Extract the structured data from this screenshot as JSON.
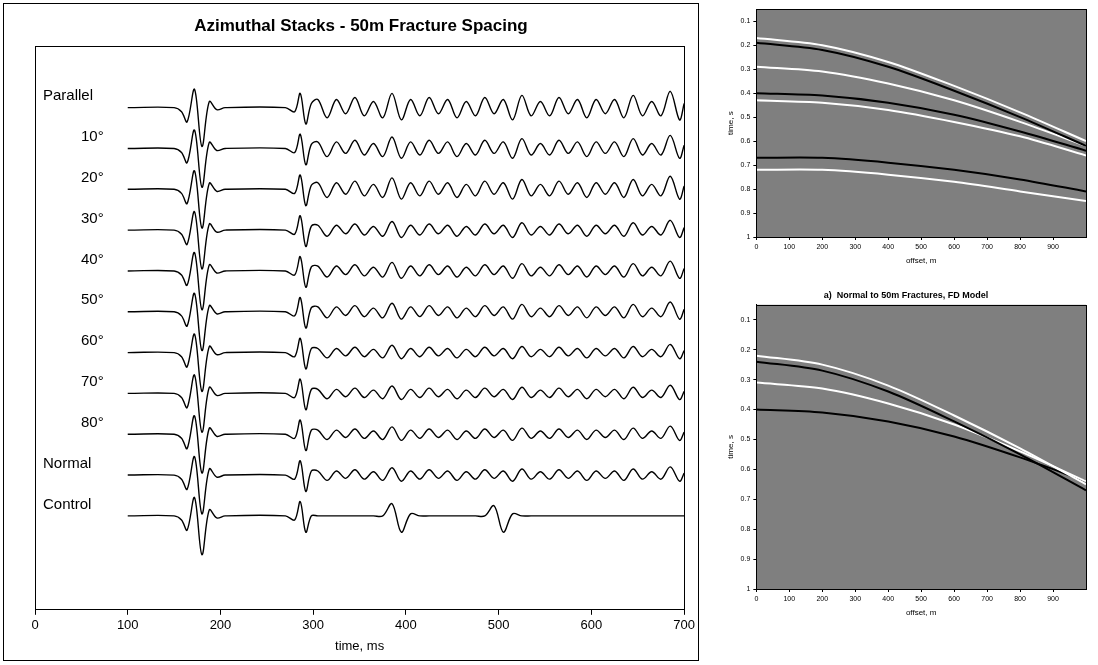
{
  "chart_data": [
    {
      "type": "line",
      "title": "Azimuthal Stacks - 50m Fracture Spacing",
      "x_label": "time, ms",
      "xlim": [
        0,
        700
      ],
      "xticks": [
        0,
        100,
        200,
        300,
        400,
        500,
        600,
        700
      ],
      "ylim": [
        -2.3,
        11.5
      ],
      "tick_labels": "x",
      "grid": false,
      "x": [
        100,
        150,
        158,
        164,
        172,
        180,
        188,
        196,
        205,
        270,
        280,
        286,
        292,
        298,
        305,
        315,
        325,
        335,
        345,
        355,
        365,
        375,
        385,
        395,
        405,
        415,
        425,
        435,
        445,
        455,
        465,
        475,
        485,
        495,
        505,
        515,
        525,
        535,
        545,
        555,
        565,
        575,
        585,
        595,
        605,
        615,
        625,
        635,
        645,
        655,
        665,
        675,
        685,
        695,
        700
      ],
      "series": [
        {
          "name": "Parallel",
          "color": "#000000",
          "values": [
            10,
            10,
            9.9,
            9.65,
            10.45,
            9.05,
            10.15,
            9.95,
            10,
            10,
            9.9,
            10.35,
            9.6,
            10.1,
            10.2,
            9.75,
            10.2,
            9.85,
            10.25,
            9.8,
            10.15,
            9.75,
            10.35,
            9.7,
            10.2,
            9.8,
            10.25,
            9.85,
            10.2,
            9.75,
            10.15,
            9.8,
            10.25,
            9.85,
            10.2,
            9.7,
            10.3,
            9.8,
            10.15,
            9.8,
            10.25,
            9.85,
            10.2,
            9.75,
            10.2,
            9.85,
            10.2,
            9.75,
            10.3,
            9.8,
            10.15,
            9.8,
            10.4,
            9.7,
            10.1
          ]
        },
        {
          "name": "10°",
          "color": "#000000",
          "values": [
            9,
            9,
            8.9,
            8.65,
            9.45,
            8.05,
            9.15,
            8.95,
            9,
            9,
            8.9,
            9.35,
            8.6,
            9.1,
            9.16,
            8.8,
            9.16,
            8.88,
            9.2,
            8.84,
            9.12,
            8.8,
            9.28,
            8.76,
            9.16,
            8.84,
            9.2,
            8.88,
            9.16,
            8.8,
            9.12,
            8.84,
            9.2,
            8.88,
            9.16,
            8.76,
            9.24,
            8.84,
            9.12,
            8.84,
            9.2,
            8.88,
            9.16,
            8.8,
            9.16,
            8.88,
            9.16,
            8.8,
            9.24,
            8.84,
            9.12,
            8.84,
            9.32,
            8.76,
            9.08
          ]
        },
        {
          "name": "20°",
          "color": "#000000",
          "values": [
            8,
            8,
            7.9,
            7.65,
            8.45,
            7.05,
            8.15,
            7.95,
            8,
            8,
            7.9,
            8.35,
            7.6,
            8.1,
            8.16,
            7.8,
            8.16,
            7.88,
            8.2,
            7.84,
            8.12,
            7.8,
            8.28,
            7.76,
            8.16,
            7.84,
            8.2,
            7.88,
            8.16,
            7.8,
            8.12,
            7.84,
            8.2,
            7.88,
            8.16,
            7.76,
            8.24,
            7.84,
            8.12,
            7.84,
            8.2,
            7.88,
            8.16,
            7.8,
            8.16,
            7.88,
            8.16,
            7.8,
            8.24,
            7.84,
            8.12,
            7.84,
            8.32,
            7.76,
            8.08
          ]
        },
        {
          "name": "30°",
          "color": "#000000",
          "values": [
            7,
            7,
            6.9,
            6.65,
            7.45,
            6.05,
            7.15,
            6.95,
            7,
            7,
            6.9,
            7.35,
            6.6,
            7.1,
            7.12,
            6.85,
            7.12,
            6.91,
            7.15,
            6.88,
            7.09,
            6.85,
            7.21,
            6.82,
            7.12,
            6.88,
            7.15,
            6.91,
            7.12,
            6.85,
            7.09,
            6.88,
            7.15,
            6.91,
            7.12,
            6.82,
            7.18,
            6.88,
            7.09,
            6.88,
            7.15,
            6.91,
            7.12,
            6.85,
            7.12,
            6.91,
            7.12,
            6.85,
            7.18,
            6.88,
            7.09,
            6.88,
            7.24,
            6.82,
            7.06
          ]
        },
        {
          "name": "40°",
          "color": "#000000",
          "values": [
            6,
            6,
            5.9,
            5.65,
            6.45,
            5.05,
            6.15,
            5.95,
            6,
            6,
            5.9,
            6.35,
            5.6,
            6.1,
            6.12,
            5.85,
            6.12,
            5.91,
            6.15,
            5.88,
            6.09,
            5.85,
            6.21,
            5.82,
            6.12,
            5.88,
            6.15,
            5.91,
            6.12,
            5.85,
            6.09,
            5.88,
            6.15,
            5.91,
            6.12,
            5.82,
            6.18,
            5.88,
            6.09,
            5.88,
            6.15,
            5.91,
            6.12,
            5.85,
            6.12,
            5.91,
            6.12,
            5.85,
            6.18,
            5.88,
            6.09,
            5.88,
            6.24,
            5.82,
            6.06
          ]
        },
        {
          "name": "50°",
          "color": "#000000",
          "values": [
            5,
            5,
            4.9,
            4.65,
            5.45,
            4.05,
            5.15,
            4.95,
            5,
            5,
            4.9,
            5.35,
            4.6,
            5.1,
            5.12,
            4.85,
            5.12,
            4.91,
            5.15,
            4.88,
            5.09,
            4.85,
            5.21,
            4.82,
            5.12,
            4.88,
            5.15,
            4.91,
            5.12,
            4.85,
            5.09,
            4.88,
            5.15,
            4.91,
            5.12,
            4.82,
            5.18,
            4.88,
            5.09,
            4.88,
            5.15,
            4.91,
            5.12,
            4.85,
            5.12,
            4.91,
            5.12,
            4.85,
            5.18,
            4.88,
            5.09,
            4.88,
            5.24,
            4.82,
            5.06
          ]
        },
        {
          "name": "60°",
          "color": "#000000",
          "values": [
            4,
            4,
            3.9,
            3.65,
            4.45,
            3.05,
            4.15,
            3.95,
            4,
            4,
            3.9,
            4.35,
            3.6,
            4.1,
            4.1,
            3.87,
            4.1,
            3.92,
            4.13,
            3.9,
            4.08,
            3.87,
            4.18,
            3.85,
            4.1,
            3.9,
            4.13,
            3.92,
            4.1,
            3.87,
            4.08,
            3.9,
            4.13,
            3.92,
            4.1,
            3.85,
            4.15,
            3.9,
            4.08,
            3.9,
            4.13,
            3.92,
            4.1,
            3.87,
            4.1,
            3.92,
            4.1,
            3.87,
            4.15,
            3.9,
            4.08,
            3.9,
            4.2,
            3.85,
            4.05
          ]
        },
        {
          "name": "70°",
          "color": "#000000",
          "values": [
            3,
            3,
            2.9,
            2.65,
            3.45,
            2.05,
            3.15,
            2.95,
            3,
            3,
            2.9,
            3.35,
            2.6,
            3.1,
            3.1,
            2.87,
            3.1,
            2.92,
            3.13,
            2.9,
            3.08,
            2.87,
            3.18,
            2.85,
            3.1,
            2.9,
            3.13,
            2.92,
            3.1,
            2.87,
            3.08,
            2.9,
            3.13,
            2.92,
            3.1,
            2.85,
            3.15,
            2.9,
            3.08,
            2.9,
            3.13,
            2.92,
            3.1,
            2.87,
            3.1,
            2.92,
            3.1,
            2.87,
            3.15,
            2.9,
            3.08,
            2.9,
            3.2,
            2.85,
            3.05
          ]
        },
        {
          "name": "80°",
          "color": "#000000",
          "values": [
            2,
            2,
            1.9,
            1.65,
            2.45,
            1.05,
            2.15,
            1.95,
            2,
            2,
            1.9,
            2.35,
            1.6,
            2.1,
            2.1,
            1.87,
            2.1,
            1.92,
            2.13,
            1.9,
            2.08,
            1.87,
            2.18,
            1.85,
            2.1,
            1.9,
            2.13,
            1.92,
            2.1,
            1.87,
            2.08,
            1.9,
            2.13,
            1.92,
            2.1,
            1.85,
            2.15,
            1.9,
            2.08,
            1.9,
            2.13,
            1.92,
            2.1,
            1.87,
            2.1,
            1.92,
            2.1,
            1.87,
            2.15,
            1.9,
            2.08,
            1.9,
            2.2,
            1.85,
            2.05
          ]
        },
        {
          "name": "Normal",
          "color": "#000000",
          "values": [
            1,
            1,
            0.9,
            0.65,
            1.45,
            0.05,
            1.15,
            0.95,
            1,
            1,
            0.9,
            1.35,
            0.6,
            1.1,
            1.1,
            0.87,
            1.1,
            0.92,
            1.13,
            0.9,
            1.08,
            0.87,
            1.18,
            0.85,
            1.1,
            0.9,
            1.13,
            0.92,
            1.1,
            0.87,
            1.08,
            0.9,
            1.13,
            0.92,
            1.1,
            0.85,
            1.15,
            0.9,
            1.08,
            0.9,
            1.13,
            0.92,
            1.1,
            0.87,
            1.1,
            0.92,
            1.1,
            0.87,
            1.15,
            0.9,
            1.08,
            0.9,
            1.2,
            0.85,
            1.05
          ]
        },
        {
          "name": "Control",
          "color": "#000000",
          "values": [
            0,
            0,
            -0.1,
            -0.35,
            0.45,
            -0.95,
            0.15,
            -0.05,
            0,
            0,
            -0.1,
            0.35,
            -0.4,
            0,
            0,
            0,
            0,
            0,
            0,
            0,
            0,
            0,
            0.3,
            -0.4,
            0.05,
            0,
            0,
            0,
            0,
            0,
            0,
            0,
            0,
            0.25,
            -0.4,
            0.05,
            0,
            0,
            0,
            0,
            0,
            0,
            0,
            0,
            0,
            0,
            0,
            0,
            0,
            0,
            0,
            0,
            0,
            0,
            0
          ]
        }
      ]
    },
    {
      "type": "line",
      "x_label": "offset, m",
      "y_label": "time, s",
      "xlim": [
        0,
        1000
      ],
      "xticks": [
        0,
        100,
        200,
        300,
        400,
        500,
        600,
        700,
        800,
        900
      ],
      "ylim": [
        1,
        0.05
      ],
      "yticks": [
        0.1,
        0.2,
        0.3,
        0.4,
        0.5,
        0.6,
        0.7,
        0.8,
        0.9,
        1
      ],
      "grid": false,
      "x": [
        0,
        200,
        400,
        600,
        800,
        1000
      ],
      "series": [
        {
          "color": "#ffffff",
          "values": [
            0.17,
            0.2,
            0.27,
            0.37,
            0.48,
            0.6
          ]
        },
        {
          "color": "#000000",
          "values": [
            0.19,
            0.22,
            0.29,
            0.39,
            0.5,
            0.62
          ]
        },
        {
          "color": "#ffffff",
          "values": [
            0.29,
            0.31,
            0.36,
            0.43,
            0.52,
            0.62
          ]
        },
        {
          "color": "#000000",
          "values": [
            0.4,
            0.41,
            0.44,
            0.49,
            0.56,
            0.64
          ]
        },
        {
          "color": "#ffffff",
          "values": [
            0.43,
            0.44,
            0.47,
            0.52,
            0.58,
            0.66
          ]
        },
        {
          "color": "#000000",
          "values": [
            0.67,
            0.67,
            0.69,
            0.72,
            0.76,
            0.81
          ]
        },
        {
          "color": "#ffffff",
          "values": [
            0.72,
            0.72,
            0.74,
            0.77,
            0.81,
            0.85
          ]
        }
      ]
    },
    {
      "type": "line",
      "title": "a)  Normal to 50m Fractures, FD Model",
      "x_label": "offset, m",
      "y_label": "time, s",
      "xlim": [
        0,
        1000
      ],
      "xticks": [
        0,
        100,
        200,
        300,
        400,
        500,
        600,
        700,
        800,
        900
      ],
      "ylim": [
        1,
        0.05
      ],
      "yticks": [
        0.1,
        0.2,
        0.3,
        0.4,
        0.5,
        0.6,
        0.7,
        0.8,
        0.9,
        1
      ],
      "grid": false,
      "x": [
        0,
        200,
        400,
        600,
        800,
        1000
      ],
      "series": [
        {
          "color": "#ffffff",
          "values": [
            0.22,
            0.25,
            0.32,
            0.42,
            0.53,
            0.65
          ]
        },
        {
          "color": "#000000",
          "values": [
            0.24,
            0.27,
            0.34,
            0.44,
            0.55,
            0.67
          ]
        },
        {
          "color": "#ffffff",
          "values": [
            0.31,
            0.33,
            0.38,
            0.45,
            0.54,
            0.64
          ]
        },
        {
          "color": "#000000",
          "values": [
            0.4,
            0.41,
            0.44,
            0.49,
            0.56,
            0.64
          ]
        }
      ]
    }
  ]
}
